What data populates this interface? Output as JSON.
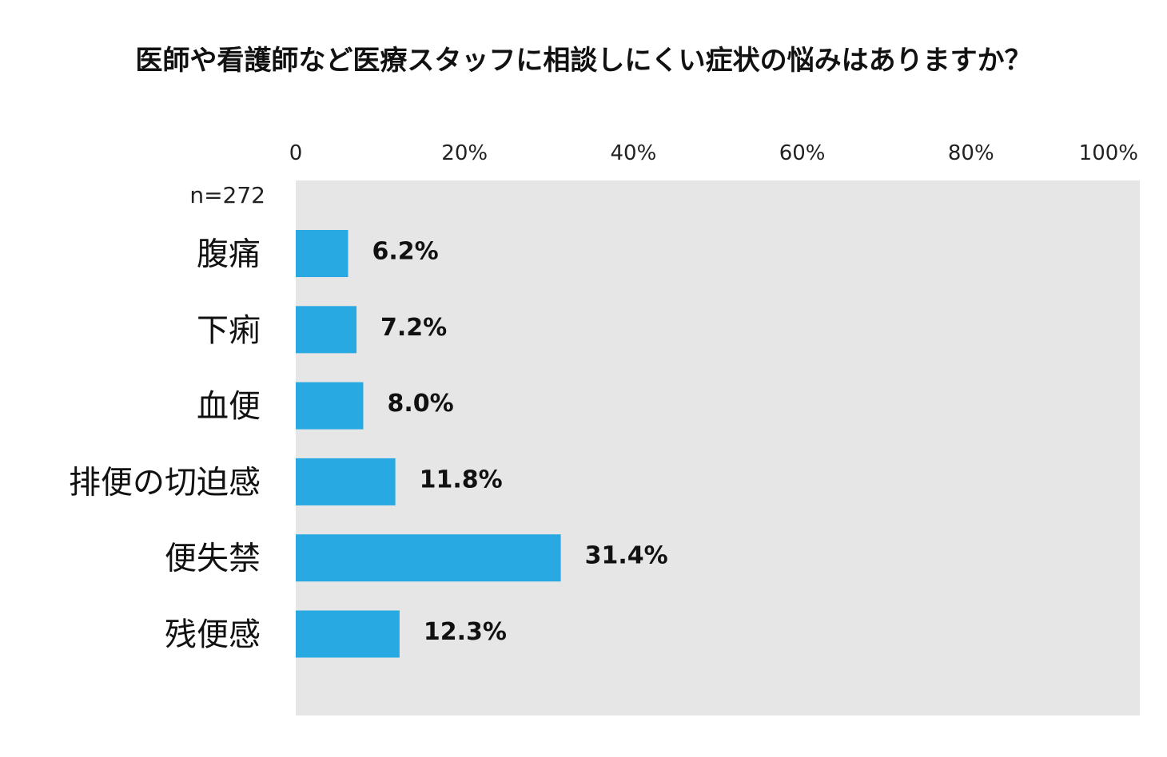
{
  "chart_data": {
    "type": "bar",
    "orientation": "horizontal",
    "title": "医師や看護師など医療スタッフに相談しにくい症状の悩みはありますか？",
    "sample_size_label": "n=272",
    "categories": [
      "腹痛",
      "下痢",
      "血便",
      "排便の切迫感",
      "便失禁",
      "残便感"
    ],
    "values": [
      6.2,
      7.2,
      8.0,
      11.8,
      31.4,
      12.3
    ],
    "value_labels": [
      "6.2%",
      "7.2%",
      "8.0%",
      "11.8%",
      "31.4%",
      "12.3%"
    ],
    "xlim": [
      0,
      100
    ],
    "x_ticks": [
      0,
      20,
      40,
      60,
      80,
      100
    ],
    "x_tick_labels": [
      "0",
      "20%",
      "40%",
      "60%",
      "80%",
      "100%"
    ],
    "xlabel": "",
    "ylabel": "",
    "grid": false,
    "legend": "none",
    "colors": {
      "bar": "#29a9e1",
      "plot_background": "#e6e6e6"
    }
  }
}
